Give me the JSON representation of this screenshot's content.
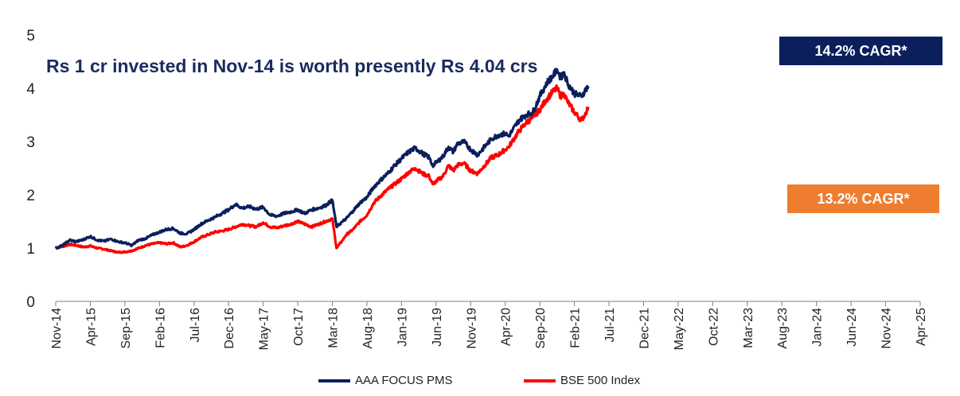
{
  "chart_data": {
    "type": "line",
    "subtitle": "Rs 1 cr invested in Nov-14 is worth presently Rs 4.04 crs",
    "ylim": [
      0,
      5
    ],
    "yticks": [
      "0",
      "1",
      "2",
      "3",
      "4",
      "5"
    ],
    "xticks": [
      "Nov-14",
      "Apr-15",
      "Sep-15",
      "Feb-16",
      "Jul-16",
      "Dec-16",
      "May-17",
      "Oct-17",
      "Mar-18",
      "Aug-18",
      "Jan-19",
      "Jun-19",
      "Nov-19",
      "Apr-20",
      "Sep-20",
      "Feb-21",
      "Jul-21",
      "Dec-21",
      "May-22",
      "Oct-22",
      "Mar-23",
      "Aug-23",
      "Jan-24",
      "Jun-24",
      "Nov-24",
      "Apr-25"
    ],
    "grid": false,
    "legend_position": "bottom",
    "annotations": [
      {
        "text": "14.2% CAGR*",
        "color": "#0b1f5c"
      },
      {
        "text": "13.2% CAGR*",
        "color": "#ef7d2f"
      }
    ],
    "series": [
      {
        "name": "AAA FOCUS PMS",
        "color": "#0b1f5c",
        "points": [
          [
            0,
            1.0
          ],
          [
            1,
            1.05
          ],
          [
            2,
            1.15
          ],
          [
            3,
            1.12
          ],
          [
            4,
            1.16
          ],
          [
            5,
            1.22
          ],
          [
            6,
            1.15
          ],
          [
            7,
            1.13
          ],
          [
            8,
            1.17
          ],
          [
            9,
            1.12
          ],
          [
            10,
            1.1
          ],
          [
            11,
            1.05
          ],
          [
            12,
            1.15
          ],
          [
            13,
            1.18
          ],
          [
            14,
            1.25
          ],
          [
            15,
            1.3
          ],
          [
            16,
            1.35
          ],
          [
            17,
            1.37
          ],
          [
            18,
            1.28
          ],
          [
            19,
            1.27
          ],
          [
            20,
            1.35
          ],
          [
            21,
            1.45
          ],
          [
            22,
            1.52
          ],
          [
            23,
            1.58
          ],
          [
            24,
            1.65
          ],
          [
            25,
            1.72
          ],
          [
            26,
            1.82
          ],
          [
            27,
            1.75
          ],
          [
            28,
            1.78
          ],
          [
            29,
            1.73
          ],
          [
            30,
            1.77
          ],
          [
            31,
            1.62
          ],
          [
            32,
            1.6
          ],
          [
            33,
            1.65
          ],
          [
            34,
            1.68
          ],
          [
            35,
            1.72
          ],
          [
            36,
            1.65
          ],
          [
            37,
            1.72
          ],
          [
            38,
            1.75
          ],
          [
            39,
            1.8
          ],
          [
            40,
            1.9
          ],
          [
            40.6,
            1.4
          ],
          [
            41.5,
            1.5
          ],
          [
            42,
            1.55
          ],
          [
            43,
            1.7
          ],
          [
            44,
            1.85
          ],
          [
            45,
            1.95
          ],
          [
            46,
            2.15
          ],
          [
            47,
            2.28
          ],
          [
            48,
            2.4
          ],
          [
            49,
            2.55
          ],
          [
            50,
            2.68
          ],
          [
            51,
            2.8
          ],
          [
            52,
            2.88
          ],
          [
            53,
            2.78
          ],
          [
            54,
            2.7
          ],
          [
            54.5,
            2.55
          ],
          [
            55,
            2.6
          ],
          [
            56,
            2.72
          ],
          [
            56.8,
            2.9
          ],
          [
            57.5,
            2.8
          ],
          [
            58,
            2.95
          ],
          [
            59,
            3.0
          ],
          [
            60,
            2.85
          ],
          [
            61,
            2.75
          ],
          [
            62,
            2.9
          ],
          [
            63,
            3.05
          ],
          [
            64,
            3.12
          ],
          [
            65,
            3.15
          ],
          [
            65.5,
            3.1
          ],
          [
            66,
            3.2
          ],
          [
            67,
            3.4
          ],
          [
            68,
            3.5
          ],
          [
            69,
            3.55
          ],
          [
            70,
            3.85
          ],
          [
            71,
            4.1
          ],
          [
            72,
            4.25
          ],
          [
            72.5,
            4.35
          ],
          [
            73,
            4.2
          ],
          [
            73.5,
            4.3
          ],
          [
            74,
            4.1
          ],
          [
            75,
            3.9
          ],
          [
            76,
            3.85
          ],
          [
            76.5,
            3.95
          ],
          [
            77,
            4.04
          ]
        ]
      },
      {
        "name": "BSE 500 Index",
        "color": "#ff0000",
        "points": [
          [
            0,
            1.0
          ],
          [
            1,
            1.03
          ],
          [
            2,
            1.07
          ],
          [
            3,
            1.05
          ],
          [
            4,
            1.02
          ],
          [
            5,
            1.04
          ],
          [
            6,
            1.0
          ],
          [
            7,
            0.98
          ],
          [
            8,
            0.95
          ],
          [
            9,
            0.92
          ],
          [
            10,
            0.93
          ],
          [
            11,
            0.95
          ],
          [
            12,
            1.0
          ],
          [
            13,
            1.05
          ],
          [
            14,
            1.08
          ],
          [
            15,
            1.1
          ],
          [
            16,
            1.08
          ],
          [
            17,
            1.1
          ],
          [
            18,
            1.02
          ],
          [
            19,
            1.05
          ],
          [
            20,
            1.12
          ],
          [
            21,
            1.2
          ],
          [
            22,
            1.25
          ],
          [
            23,
            1.3
          ],
          [
            24,
            1.32
          ],
          [
            25,
            1.35
          ],
          [
            26,
            1.4
          ],
          [
            27,
            1.45
          ],
          [
            28,
            1.42
          ],
          [
            29,
            1.4
          ],
          [
            30,
            1.48
          ],
          [
            31,
            1.4
          ],
          [
            32,
            1.38
          ],
          [
            33,
            1.42
          ],
          [
            34,
            1.45
          ],
          [
            35,
            1.5
          ],
          [
            36,
            1.45
          ],
          [
            37,
            1.4
          ],
          [
            38,
            1.45
          ],
          [
            39,
            1.5
          ],
          [
            40,
            1.55
          ],
          [
            40.6,
            1.0
          ],
          [
            41.5,
            1.15
          ],
          [
            42,
            1.25
          ],
          [
            43,
            1.35
          ],
          [
            44,
            1.5
          ],
          [
            45,
            1.62
          ],
          [
            46,
            1.85
          ],
          [
            47,
            1.98
          ],
          [
            48,
            2.1
          ],
          [
            49,
            2.2
          ],
          [
            50,
            2.3
          ],
          [
            51,
            2.42
          ],
          [
            52,
            2.5
          ],
          [
            53,
            2.4
          ],
          [
            54,
            2.35
          ],
          [
            54.5,
            2.2
          ],
          [
            55,
            2.25
          ],
          [
            56,
            2.35
          ],
          [
            56.8,
            2.55
          ],
          [
            57.5,
            2.45
          ],
          [
            58,
            2.55
          ],
          [
            59,
            2.6
          ],
          [
            60,
            2.45
          ],
          [
            61,
            2.4
          ],
          [
            62,
            2.55
          ],
          [
            63,
            2.7
          ],
          [
            64,
            2.75
          ],
          [
            65,
            2.85
          ],
          [
            65.5,
            2.9
          ],
          [
            66,
            3.0
          ],
          [
            67,
            3.2
          ],
          [
            68,
            3.35
          ],
          [
            69,
            3.45
          ],
          [
            70,
            3.6
          ],
          [
            71,
            3.8
          ],
          [
            72,
            3.95
          ],
          [
            72.5,
            4.0
          ],
          [
            73,
            3.85
          ],
          [
            73.5,
            3.9
          ],
          [
            74,
            3.75
          ],
          [
            75,
            3.55
          ],
          [
            76,
            3.4
          ],
          [
            76.5,
            3.5
          ],
          [
            77,
            3.65
          ]
        ]
      }
    ]
  }
}
